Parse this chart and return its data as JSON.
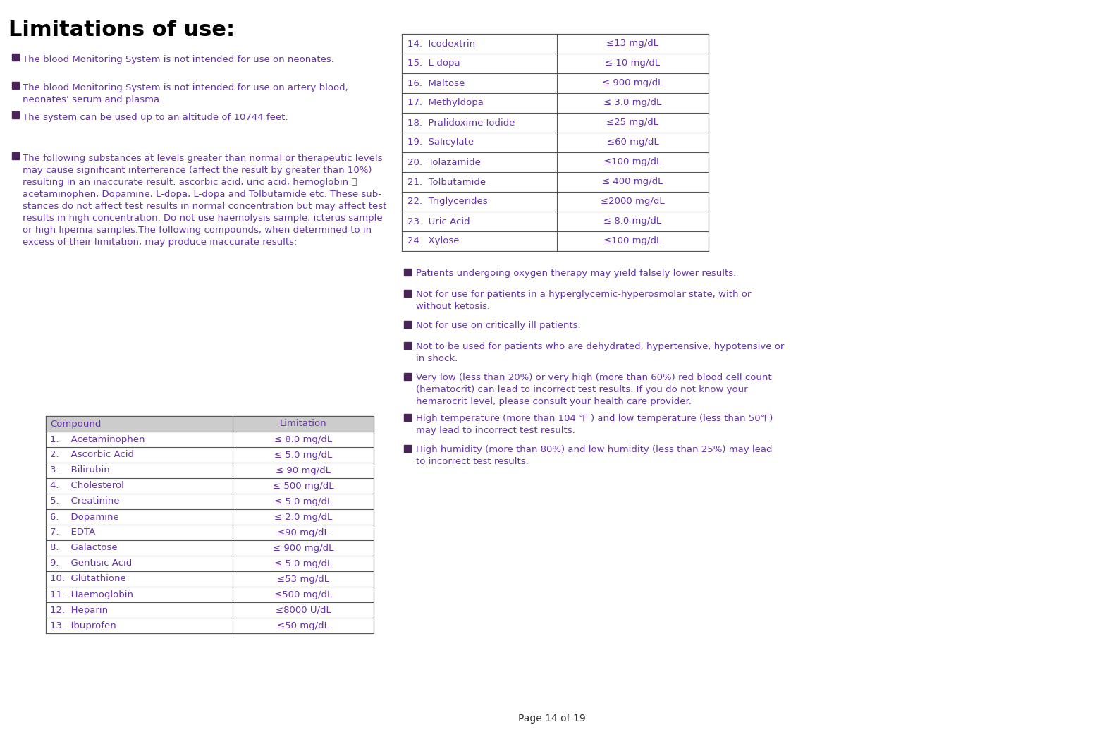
{
  "title": "Limitations of use:",
  "text_color": "#6633aa",
  "title_color": "#000000",
  "bg_color": "#ffffff",
  "page_footer": "Page 14 of 19",
  "bullet_color": "#4a235a",
  "table_border_color": "#555555",
  "table_header_bg": "#cccccc",
  "bullet_points_left": [
    "The blood Monitoring System is not intended for use on neonates.",
    "The blood Monitoring System is not intended for use on artery blood,\nneonates’ serum and plasma.",
    "The system can be used up to an altitude of 10744 feet.",
    "The following substances at levels greater than normal or therapeutic levels\nmay cause significant interference (affect the result by greater than 10%)\nresulting in an inaccurate result: ascorbic acid, uric acid, hemoglobin ，\nacetaminophen, Dopamine, L-dopa, L-dopa and Tolbutamide etc. These sub-\nstances do not affect test results in normal concentration but may affect test\nresults in high concentration. Do not use haemolysis sample, icterus sample\nor high lipemia samples.The following compounds, when determined to in\nexcess of their limitation, may produce inaccurate results:"
  ],
  "table_left": [
    [
      "Compound",
      "Limitation"
    ],
    [
      "1.    Acetaminophen",
      "≤ 8.0 mg/dL"
    ],
    [
      "2.    Ascorbic Acid",
      "≤ 5.0 mg/dL"
    ],
    [
      "3.    Bilirubin",
      "≤ 90 mg/dL"
    ],
    [
      "4.    Cholesterol",
      "≤ 500 mg/dL"
    ],
    [
      "5.    Creatinine",
      "≤ 5.0 mg/dL"
    ],
    [
      "6.    Dopamine",
      "≤ 2.0 mg/dL"
    ],
    [
      "7.    EDTA",
      "≤90 mg/dL"
    ],
    [
      "8.    Galactose",
      "≤ 900 mg/dL"
    ],
    [
      "9.    Gentisic Acid",
      "≤ 5.0 mg/dL"
    ],
    [
      "10.  Glutathione",
      "≤53 mg/dL"
    ],
    [
      "11.  Haemoglobin",
      "≤500 mg/dL"
    ],
    [
      "12.  Heparin",
      "≤8000 U/dL"
    ],
    [
      "13.  Ibuprofen",
      "≤50 mg/dL"
    ]
  ],
  "table_right": [
    [
      "14.  Icodextrin",
      "≤13 mg/dL"
    ],
    [
      "15.  L-dopa",
      "≤ 10 mg/dL"
    ],
    [
      "16.  Maltose",
      "≤ 900 mg/dL"
    ],
    [
      "17.  Methyldopa",
      "≤ 3.0 mg/dL"
    ],
    [
      "18.  Pralidoxime Iodide",
      "≤25 mg/dL"
    ],
    [
      "19.  Salicylate",
      "≤60 mg/dL"
    ],
    [
      "20.  Tolazamide",
      "≤100 mg/dL"
    ],
    [
      "21.  Tolbutamide",
      "≤ 400 mg/dL"
    ],
    [
      "22.  Triglycerides",
      "≤2000 mg/dL"
    ],
    [
      "23.  Uric Acid",
      "≤ 8.0 mg/dL"
    ],
    [
      "24.  Xylose",
      "≤100 mg/dL"
    ]
  ],
  "bullet_points_right": [
    "Patients undergoing oxygen therapy may yield falsely lower results.",
    "Not for use for patients in a hyperglycemic-hyperosmolar state, with or\nwithout ketosis.",
    "Not for use on critically ill patients.",
    "Not to be used for patients who are dehydrated, hypertensive, hypotensive or\nin shock.",
    "Very low (less than 20%) or very high (more than 60%) red blood cell count\n(hematocrit) can lead to incorrect test results. If you do not know your\nhemarocrit level, please consult your health care provider.",
    "High temperature (more than 104 ℉ ) and low temperature (less than 50℉)\nmay lead to incorrect test results.",
    "High humidity (more than 80%) and low humidity (less than 25%) may lead\nto incorrect test results."
  ]
}
